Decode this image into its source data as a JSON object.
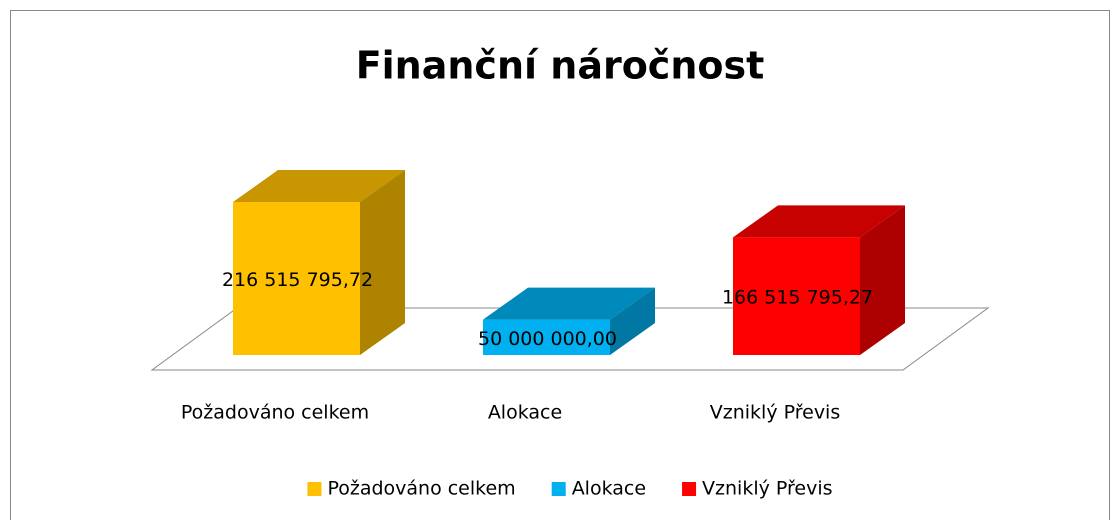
{
  "chart_data": {
    "type": "bar3d",
    "title": "Finanční náročnost",
    "categories": [
      "Požadováno celkem",
      "Alokace",
      "Vzniklý Převis"
    ],
    "values": [
      216515795.72,
      50000000.0,
      166515795.27
    ],
    "value_labels": [
      "216 515 795,72",
      "50 000 000,00",
      "166 515 795,27"
    ],
    "colors": [
      "#ffc000",
      "#00b0f0",
      "#ff0000"
    ],
    "legend": "bottom"
  }
}
